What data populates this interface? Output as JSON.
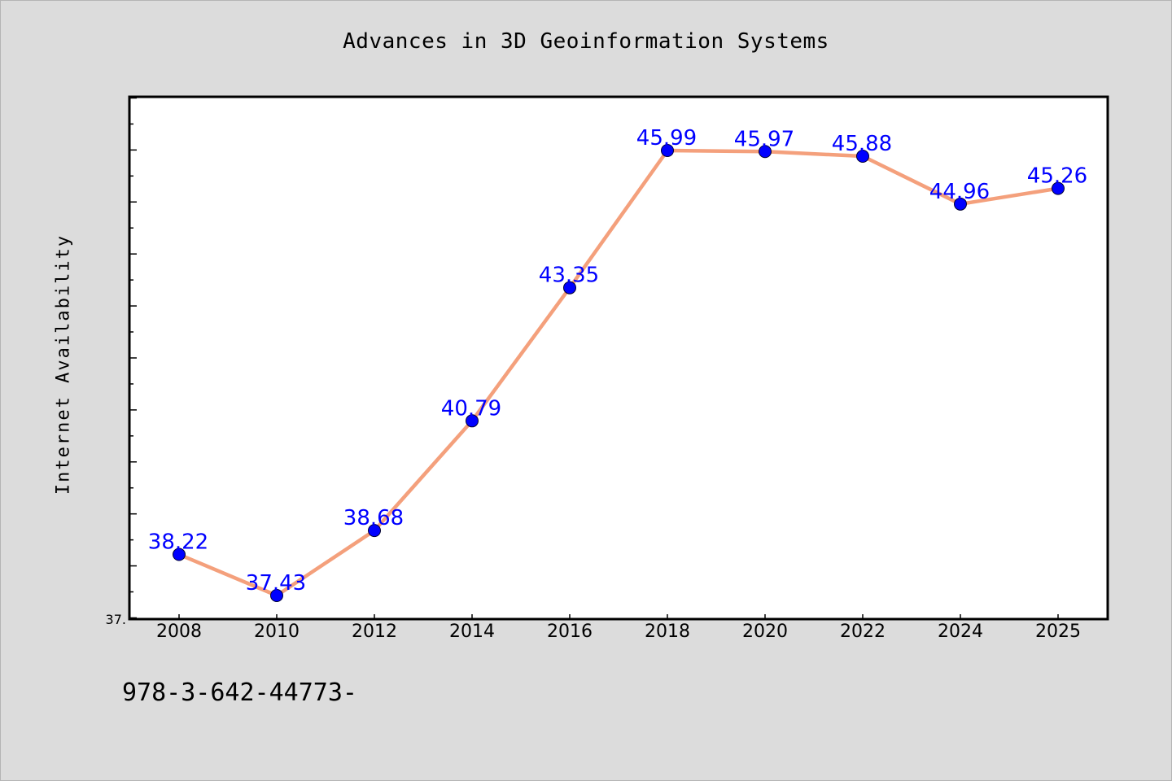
{
  "chart_data": {
    "type": "line",
    "title": "Advances in 3D Geoinformation Systems",
    "ylabel": "Internet Availability",
    "xlabel": "",
    "categories": [
      "2008",
      "2010",
      "2012",
      "2014",
      "2016",
      "2018",
      "2020",
      "2022",
      "2024",
      "2025"
    ],
    "series": [
      {
        "values": [
          38.22,
          37.43,
          38.68,
          40.79,
          43.35,
          45.99,
          45.97,
          45.88,
          44.96,
          45.26
        ],
        "data_labels": [
          "38.22",
          "37.43",
          "38.68",
          "40.79",
          "43.35",
          "45.99",
          "45.97",
          "45.88",
          "44.96",
          "45.26"
        ]
      }
    ],
    "y_tick_labels": [
      "37."
    ],
    "ylim": [
      37,
      47
    ],
    "grid": false,
    "colors": {
      "line": "#f4a07c",
      "marker": "#0000ff",
      "data_label": "#0000ff",
      "background": "#dcdcdc",
      "plot_background": "#ffffff"
    }
  },
  "footer_text": "978-3-642-44773-"
}
